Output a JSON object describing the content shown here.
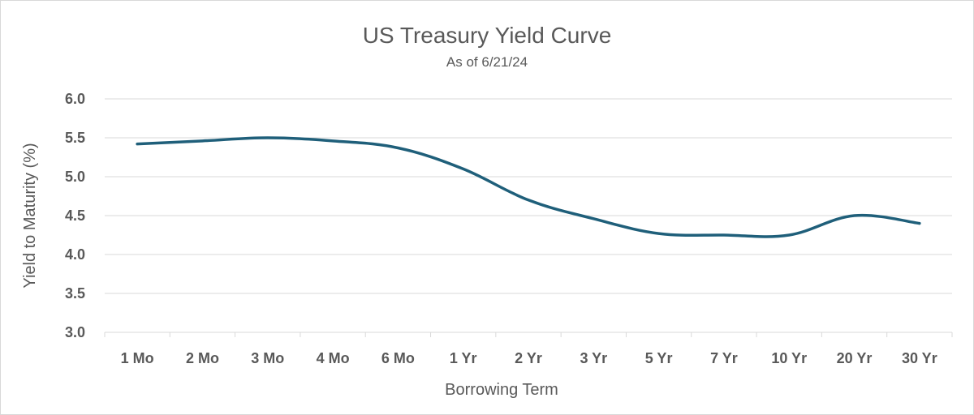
{
  "chart_data": {
    "type": "line",
    "title": "US Treasury Yield Curve",
    "subtitle": "As of 6/21/24",
    "xlabel": "Borrowing Term",
    "ylabel": "Yield to Maturity (%)",
    "categories": [
      "1 Mo",
      "2 Mo",
      "3 Mo",
      "4 Mo",
      "6 Mo",
      "1 Yr",
      "2 Yr",
      "3 Yr",
      "5 Yr",
      "7 Yr",
      "10 Yr",
      "20 Yr",
      "30 Yr"
    ],
    "series": [
      {
        "values": [
          5.42,
          5.46,
          5.5,
          5.46,
          5.37,
          5.1,
          4.7,
          4.46,
          4.27,
          4.25,
          4.25,
          4.5,
          4.4
        ]
      }
    ],
    "ylim": [
      3.0,
      6.0
    ],
    "yticks": [
      "3.0",
      "3.5",
      "4.0",
      "4.5",
      "5.0",
      "5.5",
      "6.0"
    ],
    "grid": true,
    "legend": "none",
    "colors": {
      "line": "#1f5f7a",
      "grid": "#d9d9d9",
      "text": "#595959"
    }
  }
}
